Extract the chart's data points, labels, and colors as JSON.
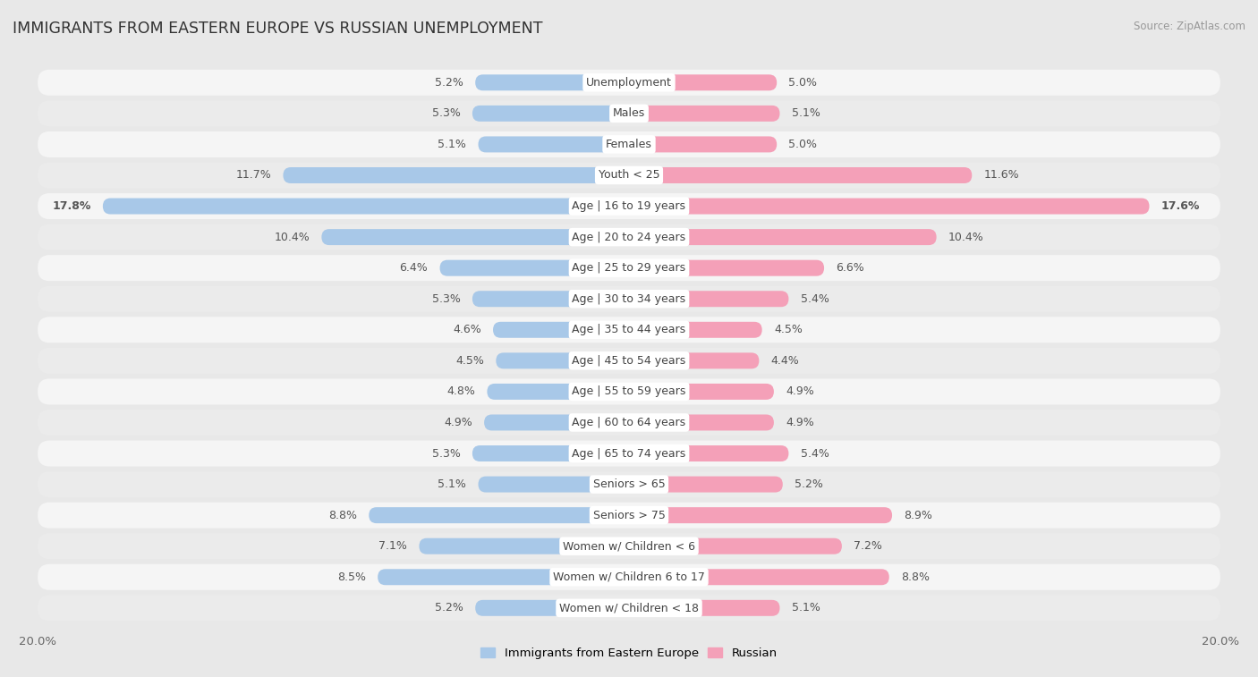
{
  "title": "IMMIGRANTS FROM EASTERN EUROPE VS RUSSIAN UNEMPLOYMENT",
  "source": "Source: ZipAtlas.com",
  "categories": [
    "Unemployment",
    "Males",
    "Females",
    "Youth < 25",
    "Age | 16 to 19 years",
    "Age | 20 to 24 years",
    "Age | 25 to 29 years",
    "Age | 30 to 34 years",
    "Age | 35 to 44 years",
    "Age | 45 to 54 years",
    "Age | 55 to 59 years",
    "Age | 60 to 64 years",
    "Age | 65 to 74 years",
    "Seniors > 65",
    "Seniors > 75",
    "Women w/ Children < 6",
    "Women w/ Children 6 to 17",
    "Women w/ Children < 18"
  ],
  "left_values": [
    5.2,
    5.3,
    5.1,
    11.7,
    17.8,
    10.4,
    6.4,
    5.3,
    4.6,
    4.5,
    4.8,
    4.9,
    5.3,
    5.1,
    8.8,
    7.1,
    8.5,
    5.2
  ],
  "right_values": [
    5.0,
    5.1,
    5.0,
    11.6,
    17.6,
    10.4,
    6.6,
    5.4,
    4.5,
    4.4,
    4.9,
    4.9,
    5.4,
    5.2,
    8.9,
    7.2,
    8.8,
    5.1
  ],
  "left_color": "#a8c8e8",
  "right_color": "#f4a0b8",
  "bar_height": 0.52,
  "xlim": 20.0,
  "bg_color": "#e8e8e8",
  "row_bg_even": "#f5f5f5",
  "row_bg_odd": "#ebebeb",
  "label_fontsize": 9.0,
  "value_fontsize": 9.0,
  "title_fontsize": 12.5,
  "legend_blue": "Immigrants from Eastern Europe",
  "legend_pink": "Russian",
  "x_tick_label": "20.0%"
}
